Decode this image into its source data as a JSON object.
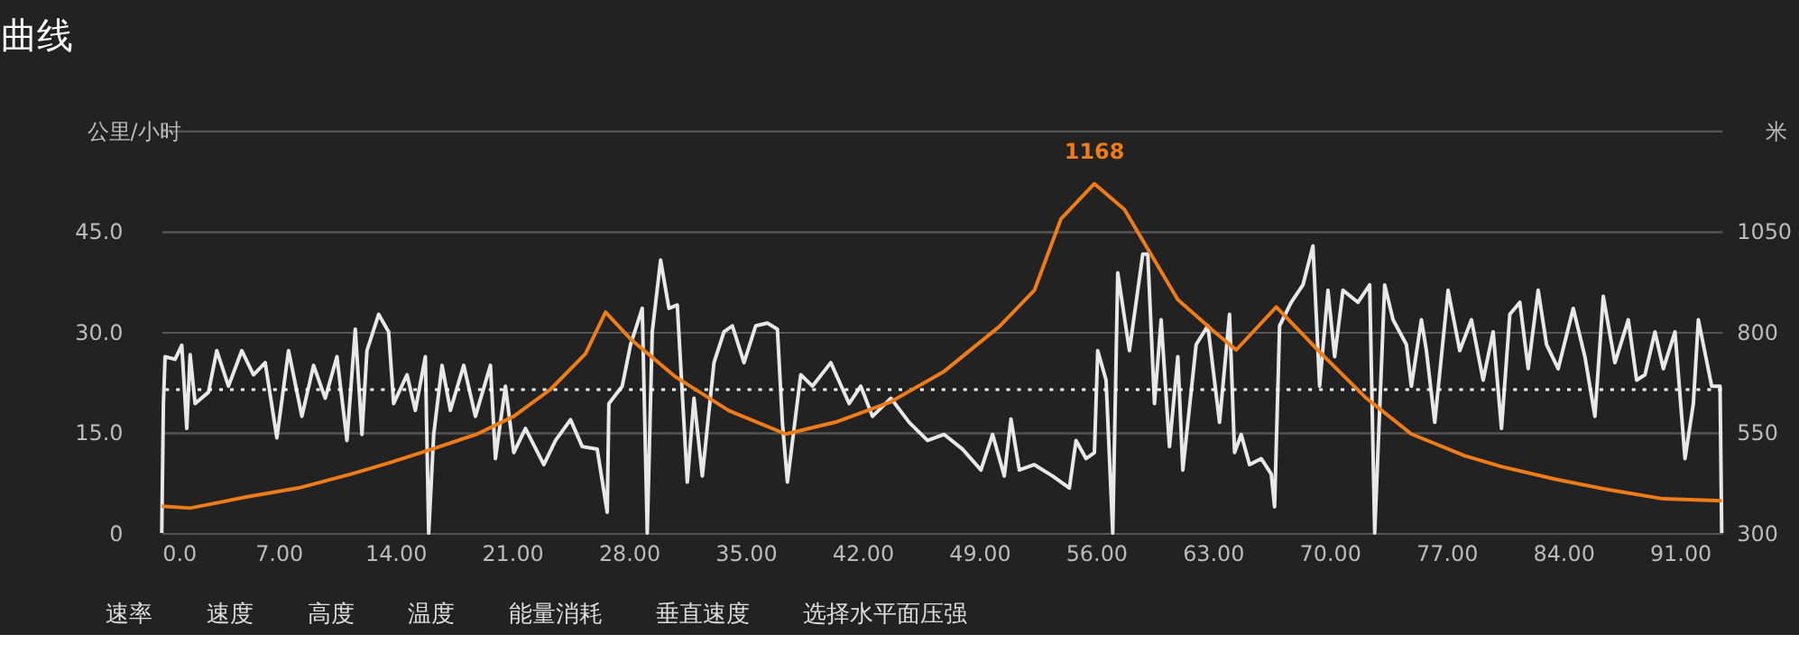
{
  "chart_data": {
    "type": "line",
    "title": "曲线",
    "xlabel": null,
    "ylabel": "公里/小时",
    "y2label": "米",
    "xlim": [
      0,
      93.5
    ],
    "xticks": [
      {
        "value": 0,
        "label": "0.0"
      },
      {
        "value": 7,
        "label": "7.00"
      },
      {
        "value": 14,
        "label": "14.00"
      },
      {
        "value": 21,
        "label": "21.00"
      },
      {
        "value": 28,
        "label": "28.00"
      },
      {
        "value": 35,
        "label": "35.00"
      },
      {
        "value": 42,
        "label": "42.00"
      },
      {
        "value": 49,
        "label": "49.00"
      },
      {
        "value": 56,
        "label": "56.00"
      },
      {
        "value": 63,
        "label": "63.00"
      },
      {
        "value": 70,
        "label": "70.00"
      },
      {
        "value": 77,
        "label": "77.00"
      },
      {
        "value": 84,
        "label": "84.00"
      },
      {
        "value": 91,
        "label": "91.00"
      }
    ],
    "ylim": [
      0,
      60
    ],
    "yticks": [
      0,
      {
        "value": 15,
        "label": "15.0"
      },
      {
        "value": 30,
        "label": "30.0"
      },
      {
        "value": 45,
        "label": "45.0"
      },
      {
        "value": 60,
        "label": null
      }
    ],
    "y2lim": [
      300,
      1300
    ],
    "y2ticks": [
      300,
      550,
      800,
      1050,
      {
        "value": 1300,
        "label": null
      }
    ],
    "grid": "y",
    "marker": "none",
    "line_style": "solid",
    "series": [
      {
        "color": "#e8e8e8",
        "x": [
          0,
          0.1,
          0.2,
          0.8,
          1.2,
          1.5,
          1.7,
          2.0,
          2.8,
          3.3,
          4.0,
          4.8,
          5.5,
          6.2,
          6.9,
          7.6,
          8.4,
          9.1,
          9.8,
          10.5,
          11.1,
          11.6,
          12.0,
          12.3,
          13.0,
          13.6,
          13.9,
          14.7,
          15.2,
          15.8,
          16.0,
          16.3,
          16.8,
          17.3,
          18.1,
          18.8,
          19.7,
          20.0,
          20.6,
          21.1,
          21.8,
          22.9,
          23.6,
          24.5,
          25.2,
          26.1,
          26.7,
          26.8,
          27.6,
          28.1,
          28.8,
          29.1,
          29.4,
          29.9,
          30.4,
          30.9,
          31.5,
          31.9,
          32.4,
          33.1,
          33.7,
          34.2,
          34.9,
          35.6,
          36.3,
          36.9,
          37.2,
          37.5,
          37.9,
          38.3,
          39.0,
          40.1,
          41.2,
          41.9,
          42.6,
          43.7,
          44.8,
          45.9,
          46.9,
          48.0,
          49.1,
          49.8,
          50.5,
          50.9,
          51.4,
          52.3,
          53.4,
          54.4,
          54.8,
          55.4,
          55.9,
          56.1,
          56.6,
          57.0,
          57.3,
          58.0,
          58.8,
          59.1,
          59.5,
          59.9,
          60.4,
          60.9,
          61.2,
          62.0,
          62.7,
          63.4,
          64.0,
          64.3,
          64.7,
          65.2,
          65.9,
          66.5,
          66.7,
          67.0,
          67.7,
          68.4,
          69.0,
          69.4,
          69.9,
          70.3,
          70.8,
          71.7,
          72.4,
          72.7,
          73.3,
          73.8,
          74.6,
          74.9,
          75.5,
          75.8,
          76.3,
          77.1,
          77.8,
          78.5,
          79.2,
          79.8,
          80.3,
          80.8,
          81.4,
          81.9,
          82.5,
          83.0,
          83.7,
          84.6,
          85.3,
          85.9,
          86.4,
          87.1,
          87.9,
          88.4,
          88.9,
          89.5,
          90.0,
          90.7,
          91.3,
          91.8,
          92.1,
          92.9,
          93.4,
          93.5
        ],
        "values": [
          0,
          19.3,
          26.3,
          25.9,
          28,
          15.6,
          26.6,
          19.3,
          21,
          27.2,
          21.9,
          27.2,
          23.6,
          25.4,
          14.2,
          27.2,
          17.4,
          25,
          20.1,
          26.3,
          13.8,
          30.4,
          14.7,
          27.2,
          32.6,
          30,
          19.3,
          23.6,
          18.3,
          26.3,
          0,
          14.7,
          25,
          18.3,
          25,
          17.4,
          25,
          11.1,
          21.9,
          12,
          15.6,
          10.2,
          13.8,
          16.9,
          12.9,
          12.5,
          3.1,
          19.3,
          21.9,
          28.1,
          33.5,
          0,
          30,
          40.7,
          33.5,
          34,
          7.6,
          20.1,
          8.5,
          25.4,
          30,
          30.9,
          25.4,
          30.9,
          31.3,
          30.4,
          16.5,
          7.6,
          15.6,
          23.6,
          21.9,
          25.4,
          19.3,
          21.9,
          17.4,
          20.1,
          16.5,
          13.8,
          14.7,
          12.5,
          9.4,
          14.7,
          8.5,
          17,
          9.4,
          10.2,
          8.5,
          6.7,
          13.8,
          11.1,
          12,
          27.2,
          22.8,
          0,
          38.8,
          27.2,
          41.6,
          41.6,
          19.3,
          31.8,
          12.9,
          26.3,
          9.4,
          28.1,
          30.9,
          16.5,
          32.6,
          12,
          14.7,
          10.2,
          11.1,
          8.8,
          3.9,
          30.9,
          34.4,
          37,
          42.8,
          21.9,
          36.2,
          26.3,
          36.2,
          34.4,
          37,
          0,
          37,
          31.8,
          28.1,
          21.9,
          31.8,
          27.2,
          16.5,
          36.2,
          27.2,
          31.8,
          22.8,
          30,
          15.6,
          32.6,
          34.4,
          24.5,
          36.2,
          28.1,
          24.5,
          33.5,
          26.3,
          17.4,
          35.3,
          25.4,
          31.8,
          22.8,
          23.6,
          30,
          24.5,
          30,
          11.1,
          19.3,
          31.8,
          21.9,
          21.9,
          0
        ]
      },
      {
        "color": "#f07c17",
        "axis": "y2",
        "x": [
          0,
          1.7,
          5,
          8.2,
          11.4,
          13.6,
          16.3,
          18.9,
          21.1,
          23.3,
          25.4,
          26.6,
          28.1,
          30.8,
          34,
          37.4,
          40.5,
          43.7,
          46.9,
          50.2,
          52.3,
          53.9,
          55.9,
          57.7,
          59.3,
          60.9,
          63.1,
          64.4,
          66.8,
          69.5,
          72.2,
          74.9,
          78.1,
          80.3,
          83.5,
          86.8,
          90,
          93.5
        ],
        "values": [
          367,
          362,
          389,
          412,
          447,
          474,
          510,
          546,
          590,
          657,
          746,
          849,
          782,
          688,
          604,
          546,
          577,
          626,
          702,
          813,
          903,
          1081,
          1168,
          1104,
          992,
          880,
          800,
          755,
          862,
          746,
          635,
          546,
          492,
          465,
          434,
          407,
          385,
          380
        ]
      }
    ],
    "ref_lines": [
      {
        "axis": "y",
        "value": 21.4,
        "color": "#ffffff",
        "line_style": "dotted"
      }
    ],
    "annotations": [
      "1168",
      "速率",
      "速度",
      "高度",
      "温度",
      "能量消耗",
      "垂直速度",
      "选择水平面压强"
    ]
  }
}
